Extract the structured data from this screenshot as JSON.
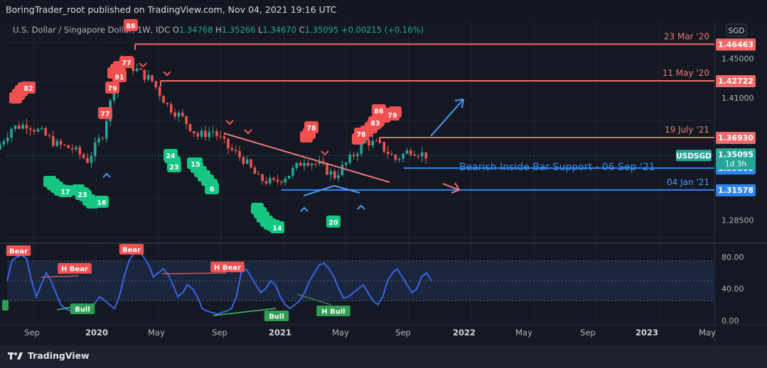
{
  "publish_line": "BoringTrader_root published on TradingView.com, Nov 04, 2021 19:16 UTC",
  "brand": "TradingView",
  "currency_button": "SGD",
  "colors": {
    "bg": "#141822",
    "candle_up": "#26a69a",
    "candle_down": "#ef5350",
    "resistance": "#f06868",
    "support": "#2f86ee",
    "osc": "#3a62e8",
    "bull": "#2ec27e"
  },
  "chart_data": {
    "type": "candlestick",
    "symbol_line": {
      "name": "U.S. Dollar / Singapore Dollar, 1W, IDC",
      "o_label": "O",
      "open": "1.34768",
      "h_label": "H",
      "high": "1.35266",
      "l_label": "L",
      "low": "1.34670",
      "c_label": "C",
      "close": "1.35095",
      "change": "+0.00215 (+0.16%)"
    },
    "y_ticks": [
      "1.45000",
      "1.41000",
      "1.28500"
    ],
    "ylim": [
      1.265,
      1.475
    ],
    "x_ticks": [
      "Sep",
      "2020",
      "May",
      "Sep",
      "2021",
      "May",
      "Sep",
      "2022",
      "May",
      "Sep",
      "2023",
      "May"
    ],
    "x_range": [
      "2019-07",
      "2023-05"
    ],
    "price": {
      "start": 1.357,
      "path": [
        [
          "2019-07",
          1.357
        ],
        [
          "2019-08",
          1.379
        ],
        [
          "2019-09",
          1.383
        ],
        [
          "2019-10",
          1.374
        ],
        [
          "2019-11",
          1.362
        ],
        [
          "2019-12",
          1.358
        ],
        [
          "2020-01",
          1.346
        ],
        [
          "2020-02",
          1.373
        ],
        [
          "2020-03",
          1.437
        ],
        [
          "2020-03",
          1.449
        ],
        [
          "2020-04",
          1.438
        ],
        [
          "2020-05",
          1.427
        ],
        [
          "2020-06",
          1.402
        ],
        [
          "2020-07",
          1.389
        ],
        [
          "2020-08",
          1.371
        ],
        [
          "2020-09",
          1.376
        ],
        [
          "2020-10",
          1.359
        ],
        [
          "2020-11",
          1.347
        ],
        [
          "2020-12",
          1.327
        ],
        [
          "2021-01",
          1.323
        ],
        [
          "2021-02",
          1.332
        ],
        [
          "2021-03",
          1.347
        ],
        [
          "2021-04",
          1.341
        ],
        [
          "2021-05",
          1.33
        ],
        [
          "2021-06",
          1.347
        ],
        [
          "2021-07",
          1.366
        ],
        [
          "2021-08",
          1.361
        ],
        [
          "2021-09",
          1.347
        ],
        [
          "2021-10",
          1.357
        ],
        [
          "2021-11",
          1.351
        ]
      ]
    },
    "horizontal_levels": [
      {
        "label": "23 Mar '20",
        "value": "1.46463",
        "type": "resistance"
      },
      {
        "label": "11 May '20",
        "value": "1.42722",
        "type": "resistance"
      },
      {
        "label": "19 July '21",
        "value": "1.36930",
        "type": "resistance"
      },
      {
        "label": "",
        "value": "1.33808",
        "type": "support"
      },
      {
        "label": "04 Jan '21",
        "value": "1.31578",
        "type": "support"
      }
    ],
    "current_price": {
      "symbol": "USDSGD",
      "value": "1.35095",
      "countdown": "1d 3h"
    },
    "annotation": "Bearish Inside Bar Support - 06 Sep '21",
    "sell_tags": [
      "82",
      "77",
      "79",
      "91",
      "77",
      "86",
      "78",
      "78",
      "83",
      "86",
      "79"
    ],
    "buy_tags": [
      "24",
      "23",
      "15",
      "6",
      "17",
      "23",
      "16",
      "20",
      "14"
    ],
    "oscillator": {
      "y_ticks": [
        "80.00",
        "40.00",
        "0.00"
      ],
      "ylim": [
        0,
        100
      ],
      "band": [
        25,
        75
      ],
      "values": [
        50,
        75,
        80,
        82,
        78,
        50,
        30,
        45,
        60,
        50,
        35,
        20,
        15,
        12,
        10,
        14,
        18,
        12,
        22,
        30,
        25,
        20,
        15,
        30,
        55,
        75,
        85,
        88,
        80,
        70,
        55,
        60,
        65,
        58,
        45,
        30,
        35,
        45,
        40,
        30,
        15,
        12,
        10,
        8,
        10,
        12,
        15,
        30,
        60,
        65,
        55,
        45,
        35,
        40,
        50,
        45,
        30,
        20,
        15,
        20,
        25,
        35,
        50,
        60,
        70,
        72,
        65,
        55,
        40,
        28,
        30,
        35,
        40,
        45,
        35,
        25,
        20,
        30,
        50,
        60,
        65,
        55,
        45,
        35,
        40,
        55,
        60,
        50
      ],
      "labels": [
        {
          "text": "Bear",
          "type": "bear"
        },
        {
          "text": "H Bear",
          "type": "bear"
        },
        {
          "text": "Bear",
          "type": "bear"
        },
        {
          "text": "H Bear",
          "type": "bear"
        },
        {
          "text": "Bull",
          "type": "bull"
        },
        {
          "text": "Bull",
          "type": "bull"
        },
        {
          "text": "H Bull",
          "type": "bull"
        }
      ]
    }
  }
}
